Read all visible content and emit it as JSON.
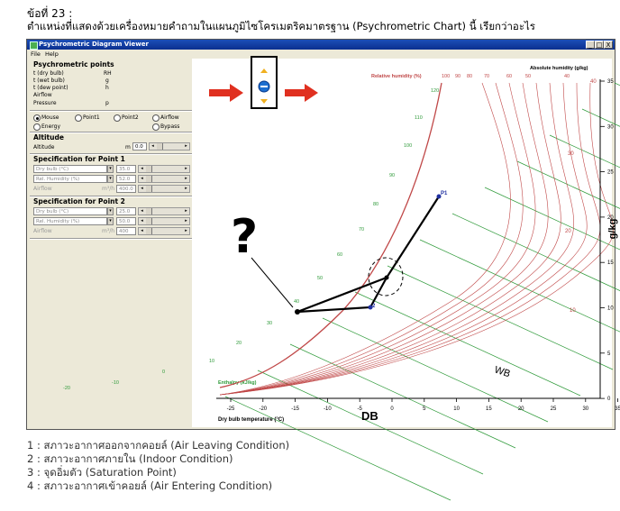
{
  "question": {
    "number": "ข้อที่ 23 :",
    "text": "ตำแหน่งที่แสดงด้วยเครื่องหมายคำถามในแผนภูมิไซโครเมตริคมาตรฐาน (Psychrometric Chart) นี้ เรียกว่าอะไร"
  },
  "window": {
    "title": "Psychrometric Diagram Viewer",
    "menu": [
      "File",
      "Help"
    ],
    "controls": [
      "_",
      "□",
      "X"
    ]
  },
  "panel": {
    "points_title": "Psychrometric points",
    "rows": [
      {
        "label": "t (dry bulb)",
        "unit": "RH"
      },
      {
        "label": "t (wet bulb)",
        "unit": "g"
      },
      {
        "label": "t (dew point)",
        "unit": "h"
      },
      {
        "label": "Airflow",
        "unit": ""
      },
      {
        "label": "Pressure",
        "unit": "p"
      }
    ],
    "radio_options": [
      {
        "label": "Mouse",
        "selected": true
      },
      {
        "label": "Point1",
        "selected": false
      },
      {
        "label": "Point2",
        "selected": false
      },
      {
        "label": "Airflow",
        "selected": false
      },
      {
        "label": "Energy",
        "selected": false
      },
      {
        "label": "Bypass",
        "selected": false
      }
    ],
    "altitude_title": "Altitude",
    "altitude_label": "Altitude",
    "altitude_unit": "m",
    "altitude_value": "0.0",
    "spec1_title": "Specification for Point 1",
    "spec1": [
      {
        "field": "Dry bulb (°C)",
        "value": "35.0",
        "unit": ""
      },
      {
        "field": "Rel. Humidity (%)",
        "value": "52.0",
        "unit": ""
      },
      {
        "field": "Airflow",
        "value": "400.0",
        "unit": "m³/h"
      }
    ],
    "spec2_title": "Specification for Point 2",
    "spec2": [
      {
        "field": "Dry bulb (°C)",
        "value": "25.0",
        "unit": ""
      },
      {
        "field": "Rel. Humidity (%)",
        "value": "50.0",
        "unit": ""
      },
      {
        "field": "Airflow",
        "value": "400",
        "unit": "m³/h"
      }
    ]
  },
  "chart": {
    "header_rh": "Relative humidity (%)",
    "rh_ticks": [
      "100",
      "90",
      "80",
      "70",
      "60",
      "50",
      "40"
    ],
    "header_abs": "Absolute humidity (g/kg)",
    "right_axis_label": "g/kg",
    "right_ticks": [
      "35",
      "30",
      "25",
      "20",
      "15",
      "10",
      "5",
      "0"
    ],
    "x_ticks": [
      "-25",
      "-20",
      "-15",
      "-10",
      "-5",
      "0",
      "5",
      "10",
      "15",
      "20",
      "25",
      "30",
      "35",
      "40",
      "45",
      "50",
      "55"
    ],
    "x_title": "Dry bulb temperature (°C)",
    "db_label": "DB",
    "wb_label": "WB",
    "enthalpy_label": "Enthalpy (kJ/kg)",
    "enthalpy_ticks": [
      "120",
      "110",
      "100",
      "90",
      "80",
      "70",
      "60",
      "50",
      "40",
      "30",
      "20",
      "10",
      "0",
      "-10",
      "-20"
    ],
    "point_labels": [
      "P1",
      "2"
    ],
    "question_mark": "?",
    "enthalpy_right_ticks": [
      "40",
      "30",
      "20",
      "10"
    ],
    "colors": {
      "rh_curve": "#c04848",
      "wb_line": "#2f9a3a",
      "process": "#000000",
      "arrow": "#e03020",
      "point": "#2030a0"
    }
  },
  "options": [
    "1 : สภาวะอากาศออกจากคอยล์ (Air Leaving Condition)",
    "2 : สภาวะอากาศภายใน (Indoor Condition)",
    "3 : จุดอิ่มตัว (Saturation Point)",
    "4 : สภาวะอากาศเข้าคอยล์ (Air Entering Condition)"
  ]
}
